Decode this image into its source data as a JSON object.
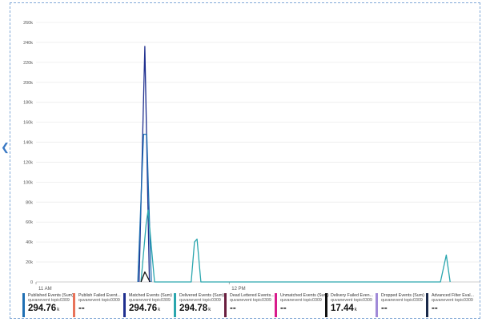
{
  "chart_data": {
    "type": "line",
    "y_ticks": [
      "260k",
      "240k",
      "220k",
      "200k",
      "180k",
      "160k",
      "140k",
      "120k",
      "100k",
      "80k",
      "60k",
      "40k",
      "20k",
      "0"
    ],
    "x_ticks": [
      "11 AM",
      "12 PM"
    ],
    "ylim": [
      0,
      260000
    ],
    "x_axis_range_minutes": [
      0,
      138
    ],
    "grid": true,
    "series": [
      {
        "name": "Matched Events (Sum)",
        "color": "#1f2f8f",
        "points": [
          [
            32,
            0
          ],
          [
            33.8,
            236000
          ],
          [
            35.2,
            0
          ]
        ]
      },
      {
        "name": "Published Events (Sum)",
        "color": "#1f6fb3",
        "points": [
          [
            31.6,
            0
          ],
          [
            33.4,
            148000
          ],
          [
            34.4,
            148000
          ],
          [
            35.8,
            0
          ]
        ]
      },
      {
        "name": "Delivered Events (Sum)",
        "color": "#2aa6ae",
        "points": [
          [
            32.6,
            0
          ],
          [
            34.2,
            58000
          ],
          [
            34.8,
            72000
          ],
          [
            36.8,
            0
          ],
          [
            48.2,
            0
          ],
          [
            49.2,
            40000
          ],
          [
            50,
            43000
          ],
          [
            51.2,
            0
          ],
          [
            125.6,
            0
          ],
          [
            127.4,
            27000
          ],
          [
            128.6,
            0
          ]
        ]
      },
      {
        "name": "Delivery Failed Events (Sum)",
        "color": "#111111",
        "points": [
          [
            32.6,
            0
          ],
          [
            33.8,
            10000
          ],
          [
            35.4,
            0
          ]
        ]
      }
    ]
  },
  "legend": [
    {
      "name": "Published Events (Sum)",
      "source": "quvanevent topic0309",
      "value": "294.76",
      "unit": "k",
      "color": "#1f6fb3"
    },
    {
      "name": "Publish Failed Event...",
      "source": "quvanevent topic0309",
      "value": "--",
      "unit": "",
      "color": "#e8735a"
    },
    {
      "name": "Matched Events (Sum)",
      "source": "quvanevent topic0309",
      "value": "294.76",
      "unit": "k",
      "color": "#1f2f8f"
    },
    {
      "name": "Delivered Events (Sum)",
      "source": "quvanevent topic0309",
      "value": "294.78",
      "unit": "k",
      "color": "#2aa6ae"
    },
    {
      "name": "Dead Lettered Events...",
      "source": "quvanevent topic0309",
      "value": "--",
      "unit": "",
      "color": "#6a1f3f"
    },
    {
      "name": "Unmatched Events (Sum)",
      "source": "quvanevent topic0309",
      "value": "--",
      "unit": "",
      "color": "#d81b8c"
    },
    {
      "name": "Delivery Failed Even...",
      "source": "quvanevent topic0309",
      "value": "17.44",
      "unit": "k",
      "color": "#111111"
    },
    {
      "name": "Dropped Events (Sum)",
      "source": "quvanevent topic0309",
      "value": "--",
      "unit": "",
      "color": "#a08ad8"
    },
    {
      "name": "Advanced Filter Eval...",
      "source": "quvanevent topic0309",
      "value": "--",
      "unit": "",
      "color": "#1b2a4a"
    }
  ],
  "icons": {
    "prev": "chevron-left-icon"
  }
}
